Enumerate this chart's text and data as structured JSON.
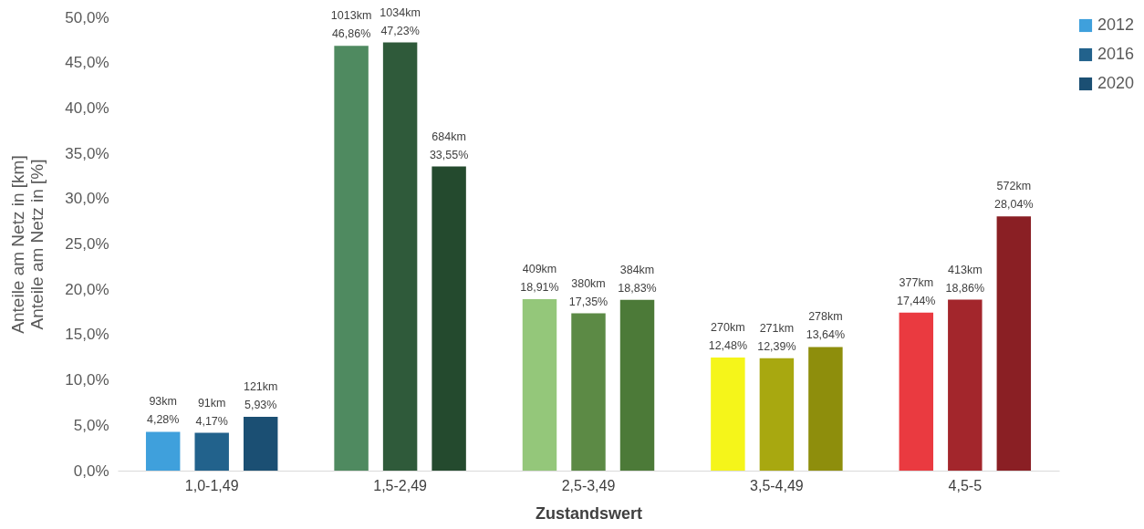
{
  "chart_data": {
    "type": "bar",
    "xlabel": "Zustandswert",
    "ylabel": "Anteile am Netz in [km]\nAnteile am Netz in [%]",
    "categories": [
      "1,0-1,49",
      "1,5-2,49",
      "2,5-3,49",
      "3,5-4,49",
      "4,5-5"
    ],
    "ylim": [
      0,
      50
    ],
    "yticks": [
      {
        "value": 0,
        "label": "0,0%"
      },
      {
        "value": 5,
        "label": "5,0%"
      },
      {
        "value": 10,
        "label": "10,0%"
      },
      {
        "value": 15,
        "label": "15,0%"
      },
      {
        "value": 20,
        "label": "20,0%"
      },
      {
        "value": 25,
        "label": "25,0%"
      },
      {
        "value": 30,
        "label": "30,0%"
      },
      {
        "value": 35,
        "label": "35,0%"
      },
      {
        "value": 40,
        "label": "40,0%"
      },
      {
        "value": 45,
        "label": "45,0%"
      },
      {
        "value": 50,
        "label": "50,0%"
      }
    ],
    "legend": "right",
    "grid": false,
    "series": [
      {
        "name": "2012",
        "color": "#3fa0dc",
        "colors": [
          "#3fa0dc",
          "#4f8a60",
          "#94c77a",
          "#f5f51a",
          "#ea3a40"
        ],
        "values": [
          4.28,
          46.86,
          18.91,
          12.48,
          17.44
        ],
        "value_labels": [
          "93km\n4,28%",
          "1013km\n46,86%",
          "409km\n18,91%",
          "270km\n12,48%",
          "377km\n17,44%"
        ]
      },
      {
        "name": "2016",
        "color": "#22628c",
        "colors": [
          "#22628c",
          "#2f5a3a",
          "#5c8a45",
          "#a8a810",
          "#a3262c"
        ],
        "values": [
          4.17,
          47.23,
          17.35,
          12.39,
          18.86
        ],
        "value_labels": [
          "91km\n4,17%",
          "1034km\n47,23%",
          "380km\n17,35%",
          "271km\n12,39%",
          "413km\n18,86%"
        ]
      },
      {
        "name": "2020",
        "color": "#1b4f73",
        "colors": [
          "#1b4f73",
          "#244a2e",
          "#4c7a38",
          "#8e8e0c",
          "#8a1f24"
        ],
        "values": [
          5.93,
          33.55,
          18.83,
          13.64,
          28.04
        ],
        "value_labels": [
          "121km\n5,93%",
          "684km\n33,55%",
          "384km\n18,83%",
          "278km\n13,64%",
          "572km\n28,04%"
        ]
      }
    ]
  }
}
